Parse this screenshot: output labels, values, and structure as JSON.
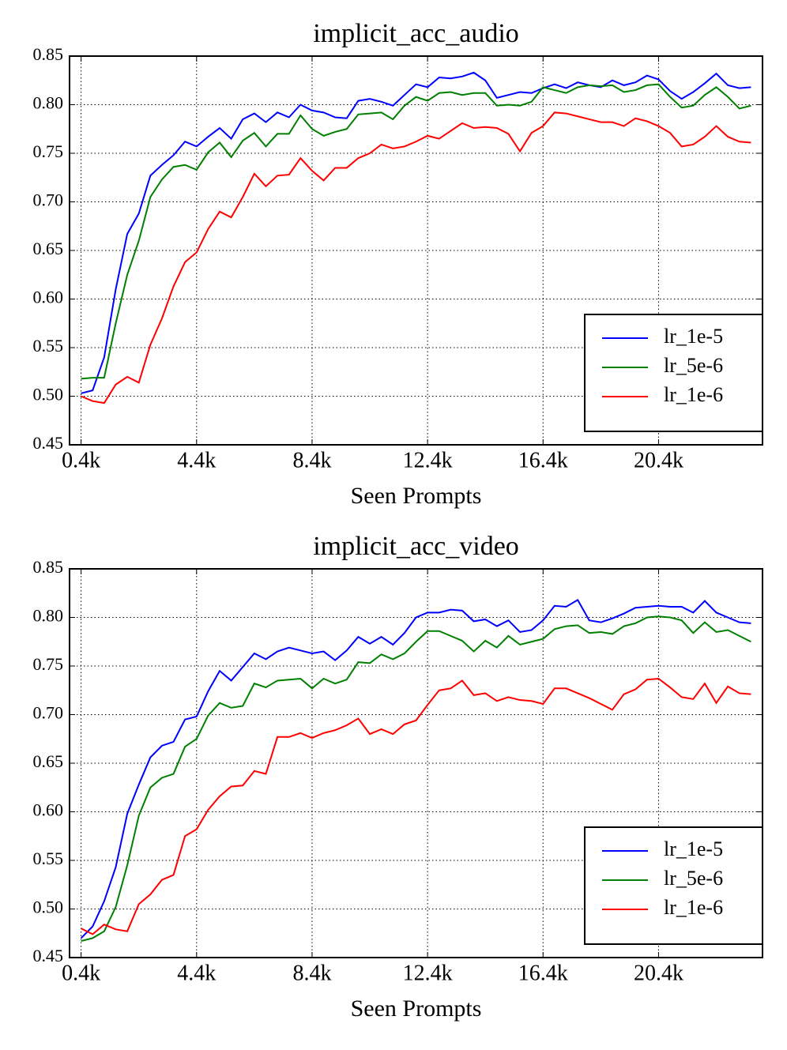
{
  "chart_data": [
    {
      "type": "line",
      "title": "implicit_acc_audio",
      "xlabel": "Seen Prompts",
      "x": [
        0.4,
        0.8,
        1.2,
        1.6,
        2.0,
        2.4,
        2.8,
        3.2,
        3.6,
        4.0,
        4.4,
        4.8,
        5.2,
        5.6,
        6.0,
        6.4,
        6.8,
        7.2,
        7.6,
        8.0,
        8.4,
        8.8,
        9.2,
        9.6,
        10.0,
        10.4,
        10.8,
        11.2,
        11.6,
        12.0,
        12.4,
        12.8,
        13.2,
        13.6,
        14.0,
        14.4,
        14.8,
        15.2,
        15.6,
        16.0,
        16.4,
        16.8,
        17.2,
        17.6,
        18.0,
        18.4,
        18.8,
        19.2,
        19.6,
        20.0,
        20.4,
        20.8,
        21.2,
        21.6,
        22.0,
        22.4,
        22.8,
        23.2,
        23.6
      ],
      "series": [
        {
          "name": "lr_1e-5",
          "color": "#0000ff",
          "values": [
            0.503,
            0.506,
            0.54,
            0.61,
            0.667,
            0.688,
            0.727,
            0.738,
            0.748,
            0.762,
            0.757,
            0.767,
            0.776,
            0.765,
            0.785,
            0.791,
            0.782,
            0.792,
            0.787,
            0.8,
            0.794,
            0.792,
            0.787,
            0.786,
            0.804,
            0.806,
            0.803,
            0.799,
            0.81,
            0.821,
            0.818,
            0.828,
            0.827,
            0.829,
            0.833,
            0.825,
            0.807,
            0.81,
            0.813,
            0.812,
            0.817,
            0.821,
            0.817,
            0.823,
            0.82,
            0.818,
            0.825,
            0.82,
            0.823,
            0.83,
            0.826,
            0.814,
            0.806,
            0.813,
            0.822,
            0.832,
            0.82,
            0.817,
            0.818
          ]
        },
        {
          "name": "lr_5e-6",
          "color": "#008000",
          "values": [
            0.518,
            0.519,
            0.519,
            0.575,
            0.625,
            0.66,
            0.705,
            0.723,
            0.736,
            0.738,
            0.733,
            0.751,
            0.761,
            0.746,
            0.763,
            0.771,
            0.757,
            0.77,
            0.77,
            0.789,
            0.775,
            0.768,
            0.772,
            0.775,
            0.79,
            0.791,
            0.792,
            0.785,
            0.799,
            0.808,
            0.804,
            0.812,
            0.813,
            0.81,
            0.812,
            0.812,
            0.799,
            0.8,
            0.799,
            0.803,
            0.818,
            0.815,
            0.812,
            0.818,
            0.82,
            0.819,
            0.82,
            0.813,
            0.815,
            0.82,
            0.821,
            0.808,
            0.797,
            0.799,
            0.81,
            0.818,
            0.808,
            0.796,
            0.799
          ]
        },
        {
          "name": "lr_1e-6",
          "color": "#ff0000",
          "values": [
            0.5,
            0.495,
            0.493,
            0.512,
            0.52,
            0.514,
            0.553,
            0.58,
            0.613,
            0.638,
            0.648,
            0.672,
            0.69,
            0.684,
            0.705,
            0.729,
            0.716,
            0.727,
            0.728,
            0.745,
            0.732,
            0.722,
            0.735,
            0.735,
            0.745,
            0.75,
            0.759,
            0.755,
            0.757,
            0.762,
            0.768,
            0.765,
            0.773,
            0.781,
            0.776,
            0.777,
            0.776,
            0.77,
            0.752,
            0.771,
            0.778,
            0.792,
            0.791,
            0.788,
            0.785,
            0.782,
            0.782,
            0.778,
            0.786,
            0.783,
            0.778,
            0.771,
            0.757,
            0.759,
            0.767,
            0.778,
            0.767,
            0.762,
            0.761
          ]
        }
      ],
      "xlim": [
        0,
        24
      ],
      "xticks": [
        {
          "value": 0.4,
          "label": "0.4k"
        },
        {
          "value": 4.4,
          "label": "4.4k"
        },
        {
          "value": 8.4,
          "label": "8.4k"
        },
        {
          "value": 12.4,
          "label": "12.4k"
        },
        {
          "value": 16.4,
          "label": "16.4k"
        },
        {
          "value": 20.4,
          "label": "20.4k"
        }
      ],
      "ylim": [
        0.45,
        0.85
      ],
      "yticks": [
        0.45,
        {
          "value": 0.5,
          "label": "0.50"
        },
        0.55,
        {
          "value": 0.6,
          "label": "0.60"
        },
        0.65,
        {
          "value": 0.7,
          "label": "0.70"
        },
        0.75,
        {
          "value": 0.8,
          "label": "0.80"
        },
        0.85
      ],
      "grid": true,
      "legend": "lower right"
    },
    {
      "type": "line",
      "title": "implicit_acc_video",
      "xlabel": "Seen Prompts",
      "x": [
        0.4,
        0.8,
        1.2,
        1.6,
        2.0,
        2.4,
        2.8,
        3.2,
        3.6,
        4.0,
        4.4,
        4.8,
        5.2,
        5.6,
        6.0,
        6.4,
        6.8,
        7.2,
        7.6,
        8.0,
        8.4,
        8.8,
        9.2,
        9.6,
        10.0,
        10.4,
        10.8,
        11.2,
        11.6,
        12.0,
        12.4,
        12.8,
        13.2,
        13.6,
        14.0,
        14.4,
        14.8,
        15.2,
        15.6,
        16.0,
        16.4,
        16.8,
        17.2,
        17.6,
        18.0,
        18.4,
        18.8,
        19.2,
        19.6,
        20.0,
        20.4,
        20.8,
        21.2,
        21.6,
        22.0,
        22.4,
        22.8,
        23.2,
        23.6
      ],
      "series": [
        {
          "name": "lr_1e-5",
          "color": "#0000ff",
          "values": [
            0.47,
            0.482,
            0.508,
            0.543,
            0.598,
            0.628,
            0.656,
            0.668,
            0.672,
            0.695,
            0.698,
            0.724,
            0.745,
            0.735,
            0.749,
            0.763,
            0.757,
            0.765,
            0.769,
            0.766,
            0.763,
            0.765,
            0.756,
            0.766,
            0.78,
            0.773,
            0.78,
            0.772,
            0.784,
            0.8,
            0.805,
            0.805,
            0.808,
            0.807,
            0.796,
            0.798,
            0.791,
            0.797,
            0.785,
            0.787,
            0.797,
            0.812,
            0.811,
            0.818,
            0.797,
            0.795,
            0.799,
            0.804,
            0.81,
            0.811,
            0.812,
            0.811,
            0.811,
            0.805,
            0.817,
            0.805,
            0.8,
            0.795,
            0.794
          ]
        },
        {
          "name": "lr_5e-6",
          "color": "#008000",
          "values": [
            0.467,
            0.47,
            0.477,
            0.502,
            0.545,
            0.596,
            0.625,
            0.635,
            0.639,
            0.667,
            0.675,
            0.699,
            0.712,
            0.707,
            0.709,
            0.732,
            0.728,
            0.735,
            0.736,
            0.737,
            0.727,
            0.737,
            0.732,
            0.736,
            0.754,
            0.753,
            0.762,
            0.757,
            0.763,
            0.775,
            0.786,
            0.786,
            0.781,
            0.776,
            0.765,
            0.776,
            0.769,
            0.781,
            0.772,
            0.775,
            0.778,
            0.788,
            0.791,
            0.792,
            0.784,
            0.785,
            0.783,
            0.791,
            0.794,
            0.8,
            0.801,
            0.8,
            0.797,
            0.784,
            0.795,
            0.785,
            0.787,
            0.781,
            0.775
          ]
        },
        {
          "name": "lr_1e-6",
          "color": "#ff0000",
          "values": [
            0.48,
            0.474,
            0.484,
            0.479,
            0.477,
            0.505,
            0.515,
            0.53,
            0.535,
            0.575,
            0.582,
            0.602,
            0.616,
            0.626,
            0.627,
            0.642,
            0.639,
            0.677,
            0.677,
            0.681,
            0.676,
            0.681,
            0.684,
            0.689,
            0.696,
            0.68,
            0.685,
            0.68,
            0.69,
            0.694,
            0.71,
            0.725,
            0.727,
            0.735,
            0.72,
            0.722,
            0.714,
            0.718,
            0.715,
            0.714,
            0.711,
            0.727,
            0.727,
            0.722,
            0.717,
            0.711,
            0.705,
            0.721,
            0.726,
            0.736,
            0.737,
            0.728,
            0.718,
            0.716,
            0.732,
            0.712,
            0.729,
            0.722,
            0.721
          ]
        }
      ],
      "xlim": [
        0,
        24
      ],
      "xticks": [
        {
          "value": 0.4,
          "label": "0.4k"
        },
        {
          "value": 4.4,
          "label": "4.4k"
        },
        {
          "value": 8.4,
          "label": "8.4k"
        },
        {
          "value": 12.4,
          "label": "12.4k"
        },
        {
          "value": 16.4,
          "label": "16.4k"
        },
        {
          "value": 20.4,
          "label": "20.4k"
        }
      ],
      "ylim": [
        0.45,
        0.85
      ],
      "yticks": [
        0.45,
        {
          "value": 0.5,
          "label": "0.50"
        },
        0.55,
        {
          "value": 0.6,
          "label": "0.60"
        },
        0.65,
        {
          "value": 0.7,
          "label": "0.70"
        },
        0.75,
        {
          "value": 0.8,
          "label": "0.80"
        },
        0.85
      ],
      "grid": true,
      "legend": "lower right"
    }
  ]
}
